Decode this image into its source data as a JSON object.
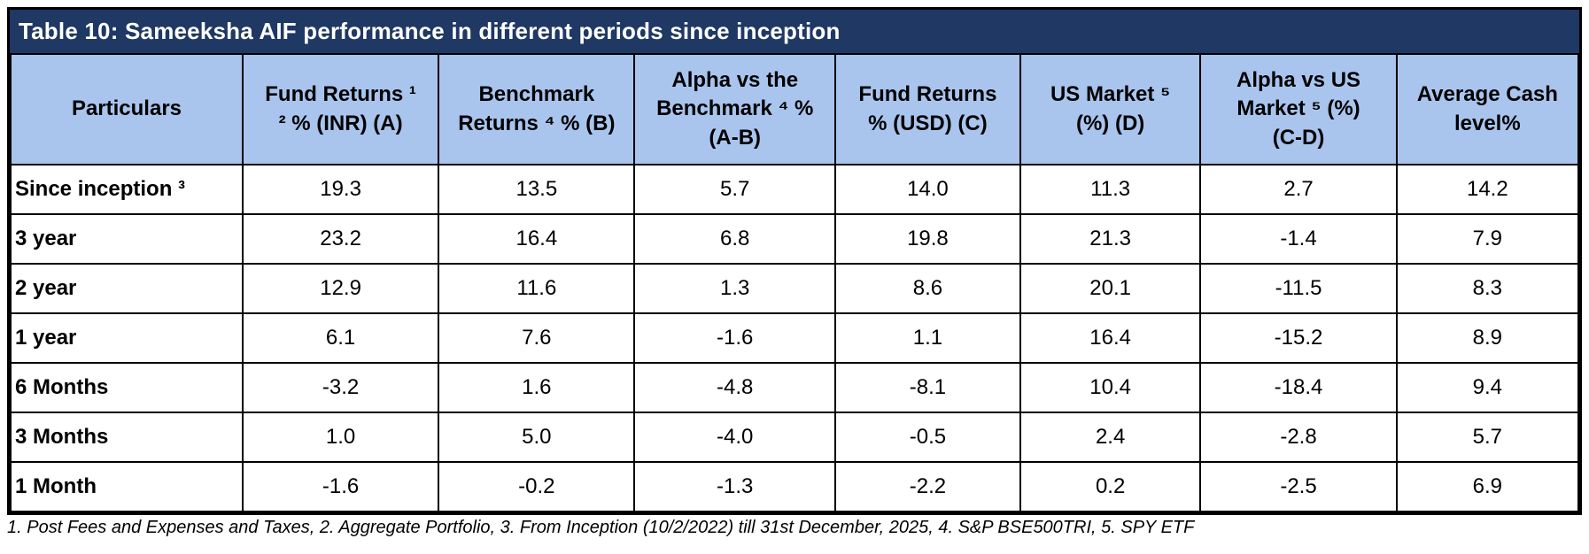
{
  "title": "Table 10: Sameeksha AIF performance in different periods since inception",
  "colors": {
    "title_bar_bg": "#1f3864",
    "title_text": "#ffffff",
    "header_bg": "#a9c5ee",
    "border": "#000000",
    "body_text": "#000000"
  },
  "table": {
    "columns": [
      {
        "id": "particulars",
        "label": "Particulars"
      },
      {
        "id": "fund-returns-inr",
        "label": "Fund Returns ¹\n² % (INR) (A)"
      },
      {
        "id": "benchmark-returns",
        "label": "Benchmark\nReturns ⁴ % (B)"
      },
      {
        "id": "alpha-vs-benchmark",
        "label": "Alpha vs the\nBenchmark ⁴ %\n(A-B)"
      },
      {
        "id": "fund-returns-usd",
        "label": "Fund Returns\n% (USD) (C)"
      },
      {
        "id": "us-market",
        "label": "US Market ⁵\n(%) (D)"
      },
      {
        "id": "alpha-vs-us-market",
        "label": "Alpha vs US\nMarket ⁵ (%)\n(C-D)"
      },
      {
        "id": "average-cash-level",
        "label": "Average Cash\nlevel%"
      }
    ],
    "rows": [
      {
        "label": "Since inception ³",
        "values": [
          "19.3",
          "13.5",
          "5.7",
          "14.0",
          "11.3",
          "2.7",
          "14.2"
        ]
      },
      {
        "label": "3 year",
        "values": [
          "23.2",
          "16.4",
          "6.8",
          "19.8",
          "21.3",
          "-1.4",
          "7.9"
        ]
      },
      {
        "label": "2 year",
        "values": [
          "12.9",
          "11.6",
          "1.3",
          "8.6",
          "20.1",
          "-11.5",
          "8.3"
        ]
      },
      {
        "label": "1 year",
        "values": [
          "6.1",
          "7.6",
          "-1.6",
          "1.1",
          "16.4",
          "-15.2",
          "8.9"
        ]
      },
      {
        "label": "6 Months",
        "values": [
          "-3.2",
          "1.6",
          "-4.8",
          "-8.1",
          "10.4",
          "-18.4",
          "9.4"
        ]
      },
      {
        "label": "3 Months",
        "values": [
          "1.0",
          "5.0",
          "-4.0",
          "-0.5",
          "2.4",
          "-2.8",
          "5.7"
        ]
      },
      {
        "label": "1 Month",
        "values": [
          "-1.6",
          "-0.2",
          "-1.3",
          "-2.2",
          "0.2",
          "-2.5",
          "6.9"
        ]
      }
    ],
    "column_widths_pct": [
      14.8,
      12.5,
      12.5,
      12.8,
      11.8,
      11.5,
      12.5,
      11.6
    ]
  },
  "footnote": "1. Post Fees and Expenses and Taxes, 2. Aggregate Portfolio, 3. From Inception (10/2/2022) till 31st December, 2025,  4. S&P BSE500TRI,  5. SPY ETF",
  "chart_data": {
    "type": "table",
    "title": "Table 10: Sameeksha AIF performance in different periods since inception",
    "categories": [
      "Since inception",
      "3 year",
      "2 year",
      "1 year",
      "6 Months",
      "3 Months",
      "1 Month"
    ],
    "series": [
      {
        "name": "Fund Returns % (INR) (A)",
        "values": [
          19.3,
          23.2,
          12.9,
          6.1,
          -3.2,
          1.0,
          -1.6
        ]
      },
      {
        "name": "Benchmark Returns % (B)",
        "values": [
          13.5,
          16.4,
          11.6,
          7.6,
          1.6,
          5.0,
          -0.2
        ]
      },
      {
        "name": "Alpha vs the Benchmark % (A-B)",
        "values": [
          5.7,
          6.8,
          1.3,
          -1.6,
          -4.8,
          -4.0,
          -1.3
        ]
      },
      {
        "name": "Fund Returns % (USD) (C)",
        "values": [
          14.0,
          19.8,
          8.6,
          1.1,
          -8.1,
          -0.5,
          -2.2
        ]
      },
      {
        "name": "US Market (%) (D)",
        "values": [
          11.3,
          21.3,
          20.1,
          16.4,
          10.4,
          2.4,
          0.2
        ]
      },
      {
        "name": "Alpha vs US Market (%) (C-D)",
        "values": [
          2.7,
          -1.4,
          -11.5,
          -15.2,
          -18.4,
          -2.8,
          -2.5
        ]
      },
      {
        "name": "Average Cash level %",
        "values": [
          14.2,
          7.9,
          8.3,
          8.9,
          9.4,
          5.7,
          6.9
        ]
      }
    ]
  }
}
